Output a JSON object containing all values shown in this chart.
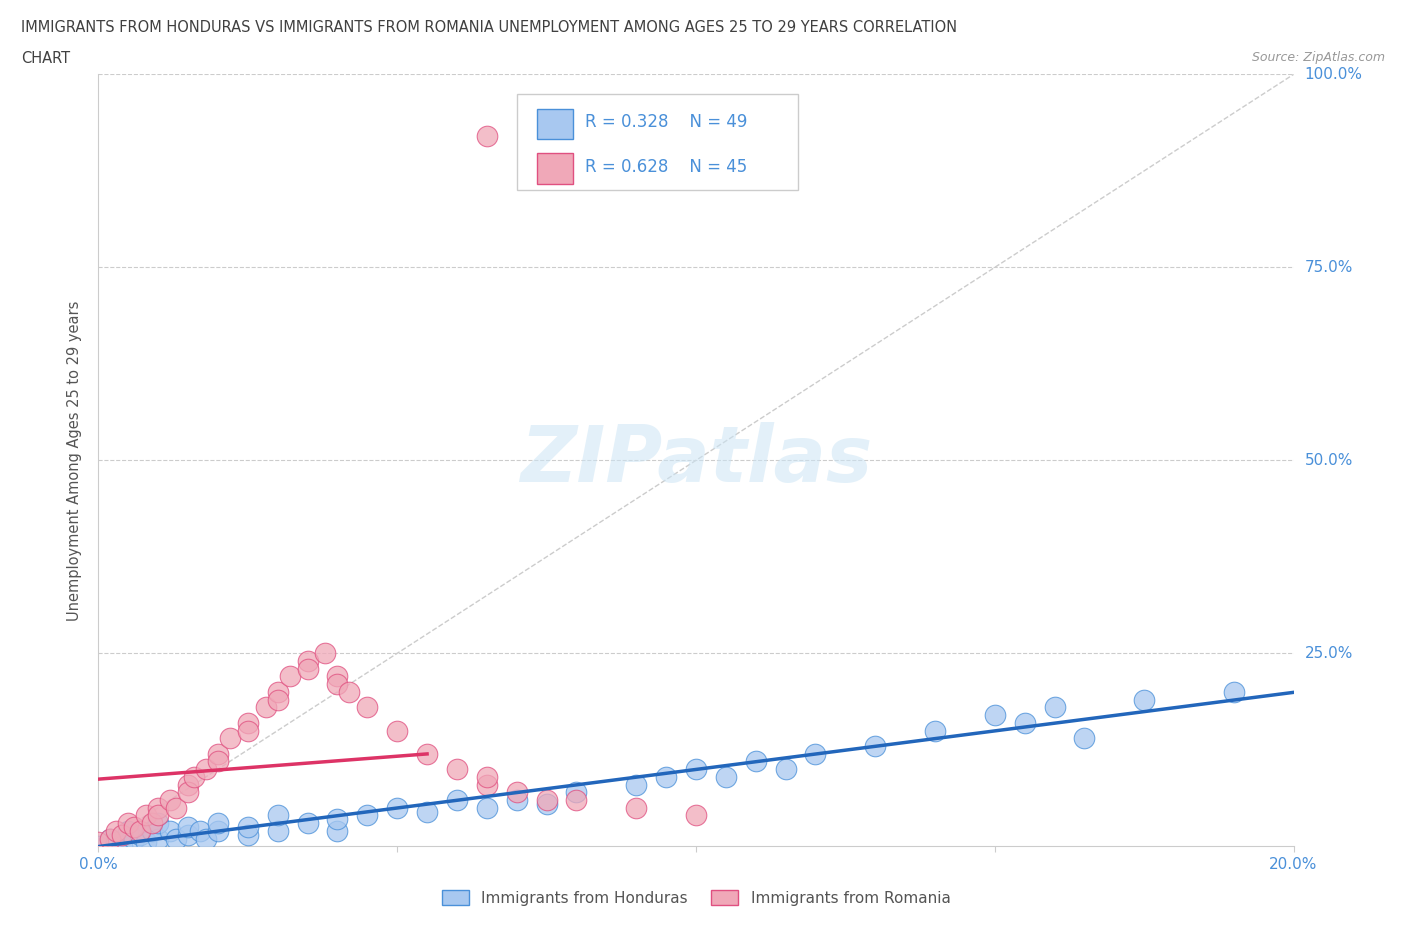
{
  "title_line1": "IMMIGRANTS FROM HONDURAS VS IMMIGRANTS FROM ROMANIA UNEMPLOYMENT AMONG AGES 25 TO 29 YEARS CORRELATION",
  "title_line2": "CHART",
  "source": "Source: ZipAtlas.com",
  "ylabel": "Unemployment Among Ages 25 to 29 years",
  "xlim": [
    0.0,
    0.2
  ],
  "ylim": [
    0.0,
    1.0
  ],
  "xtick_vals": [
    0.0,
    0.05,
    0.1,
    0.15,
    0.2
  ],
  "xtick_labels": [
    "0.0%",
    "",
    "",
    "",
    "20.0%"
  ],
  "ytick_vals": [
    0.0,
    0.25,
    0.5,
    0.75,
    1.0
  ],
  "ytick_labels": [
    "",
    "25.0%",
    "50.0%",
    "75.0%",
    "100.0%"
  ],
  "honduras_fill": "#a8c8f0",
  "honduras_edge": "#4a90d9",
  "romania_fill": "#f0a8b8",
  "romania_edge": "#e05080",
  "honduras_trend_color": "#2266bb",
  "romania_trend_color": "#dd3366",
  "diag_color": "#cccccc",
  "R_honduras": 0.328,
  "N_honduras": 49,
  "R_romania": 0.628,
  "N_romania": 45,
  "watermark": "ZIPatlas",
  "legend_labels": [
    "Immigrants from Honduras",
    "Immigrants from Romania"
  ],
  "background_color": "#ffffff",
  "grid_color": "#cccccc",
  "title_color": "#404040",
  "tick_color": "#4a90d9",
  "honduras_x": [
    0.0,
    0.002,
    0.003,
    0.004,
    0.005,
    0.006,
    0.007,
    0.008,
    0.009,
    0.01,
    0.01,
    0.012,
    0.013,
    0.015,
    0.015,
    0.017,
    0.018,
    0.02,
    0.02,
    0.025,
    0.025,
    0.03,
    0.03,
    0.035,
    0.04,
    0.04,
    0.045,
    0.05,
    0.055,
    0.06,
    0.065,
    0.07,
    0.075,
    0.08,
    0.09,
    0.095,
    0.1,
    0.105,
    0.11,
    0.115,
    0.12,
    0.13,
    0.14,
    0.15,
    0.155,
    0.16,
    0.165,
    0.175,
    0.19
  ],
  "honduras_y": [
    0.0,
    0.01,
    0.005,
    0.0,
    0.02,
    0.01,
    0.015,
    0.005,
    0.02,
    0.01,
    0.03,
    0.02,
    0.01,
    0.015,
    0.025,
    0.02,
    0.01,
    0.02,
    0.03,
    0.015,
    0.025,
    0.02,
    0.04,
    0.03,
    0.02,
    0.035,
    0.04,
    0.05,
    0.045,
    0.06,
    0.05,
    0.06,
    0.055,
    0.07,
    0.08,
    0.09,
    0.1,
    0.09,
    0.11,
    0.1,
    0.12,
    0.13,
    0.15,
    0.17,
    0.16,
    0.18,
    0.14,
    0.19,
    0.2
  ],
  "romania_x": [
    0.0,
    0.002,
    0.003,
    0.004,
    0.005,
    0.006,
    0.007,
    0.008,
    0.009,
    0.01,
    0.01,
    0.012,
    0.013,
    0.015,
    0.015,
    0.016,
    0.018,
    0.02,
    0.02,
    0.022,
    0.025,
    0.025,
    0.028,
    0.03,
    0.03,
    0.032,
    0.035,
    0.035,
    0.038,
    0.04,
    0.04,
    0.042,
    0.045,
    0.05,
    0.055,
    0.06,
    0.065,
    0.065,
    0.07,
    0.075,
    0.08,
    0.09,
    0.1,
    0.065,
    0.09
  ],
  "romania_y": [
    0.005,
    0.01,
    0.02,
    0.015,
    0.03,
    0.025,
    0.02,
    0.04,
    0.03,
    0.05,
    0.04,
    0.06,
    0.05,
    0.08,
    0.07,
    0.09,
    0.1,
    0.12,
    0.11,
    0.14,
    0.16,
    0.15,
    0.18,
    0.2,
    0.19,
    0.22,
    0.24,
    0.23,
    0.25,
    0.22,
    0.21,
    0.2,
    0.18,
    0.15,
    0.12,
    0.1,
    0.08,
    0.09,
    0.07,
    0.06,
    0.06,
    0.05,
    0.04,
    0.92,
    0.92
  ]
}
